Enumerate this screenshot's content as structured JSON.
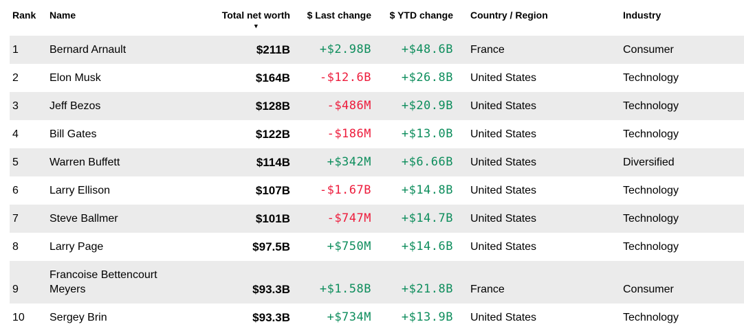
{
  "colors": {
    "positive": "#0d8d5c",
    "negative": "#ed1b3b",
    "row_alt": "#ebebeb",
    "text": "#000000"
  },
  "table": {
    "sort_icon": "▼",
    "sorted_column": "Total net worth",
    "sort_direction": "descending",
    "columns": [
      {
        "key": "rank",
        "label": "Rank"
      },
      {
        "key": "name",
        "label": "Name"
      },
      {
        "key": "net_worth",
        "label": "Total net worth"
      },
      {
        "key": "last_change",
        "label": "$ Last change"
      },
      {
        "key": "ytd_change",
        "label": "$ YTD change"
      },
      {
        "key": "country",
        "label": "Country / Region"
      },
      {
        "key": "industry",
        "label": "Industry"
      }
    ],
    "rows": [
      {
        "rank": "1",
        "name": "Bernard Arnault",
        "net_worth": "$211B",
        "last_change": "+$2.98B",
        "ytd_change": "+$48.6B",
        "country": "France",
        "industry": "Consumer"
      },
      {
        "rank": "2",
        "name": "Elon Musk",
        "net_worth": "$164B",
        "last_change": "-$12.6B",
        "ytd_change": "+$26.8B",
        "country": "United States",
        "industry": "Technology"
      },
      {
        "rank": "3",
        "name": "Jeff Bezos",
        "net_worth": "$128B",
        "last_change": "-$486M",
        "ytd_change": "+$20.9B",
        "country": "United States",
        "industry": "Technology"
      },
      {
        "rank": "4",
        "name": "Bill Gates",
        "net_worth": "$122B",
        "last_change": "-$186M",
        "ytd_change": "+$13.0B",
        "country": "United States",
        "industry": "Technology"
      },
      {
        "rank": "5",
        "name": "Warren Buffett",
        "net_worth": "$114B",
        "last_change": "+$342M",
        "ytd_change": "+$6.66B",
        "country": "United States",
        "industry": "Diversified"
      },
      {
        "rank": "6",
        "name": "Larry Ellison",
        "net_worth": "$107B",
        "last_change": "-$1.67B",
        "ytd_change": "+$14.8B",
        "country": "United States",
        "industry": "Technology"
      },
      {
        "rank": "7",
        "name": "Steve Ballmer",
        "net_worth": "$101B",
        "last_change": "-$747M",
        "ytd_change": "+$14.7B",
        "country": "United States",
        "industry": "Technology"
      },
      {
        "rank": "8",
        "name": "Larry Page",
        "net_worth": "$97.5B",
        "last_change": "+$750M",
        "ytd_change": "+$14.6B",
        "country": "United States",
        "industry": "Technology"
      },
      {
        "rank": "9",
        "name": "Francoise Bettencourt Meyers",
        "net_worth": "$93.3B",
        "last_change": "+$1.58B",
        "ytd_change": "+$21.8B",
        "country": "France",
        "industry": "Consumer"
      },
      {
        "rank": "10",
        "name": "Sergey Brin",
        "net_worth": "$93.3B",
        "last_change": "+$734M",
        "ytd_change": "+$13.9B",
        "country": "United States",
        "industry": "Technology"
      }
    ]
  }
}
